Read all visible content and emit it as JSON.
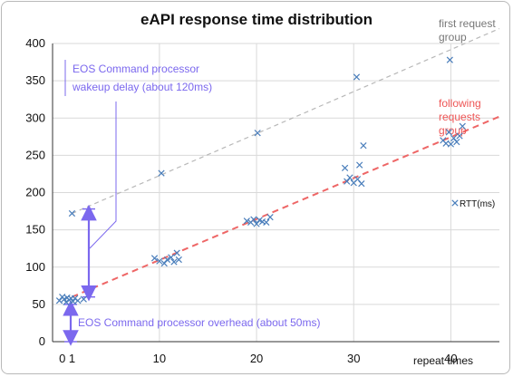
{
  "chart_data": {
    "type": "scatter",
    "title": "eAPI response time distribution",
    "xlabel": "repeat times",
    "ylabel": "",
    "xlim": [
      -1,
      45
    ],
    "ylim": [
      0,
      400
    ],
    "x_ticks": [
      "0",
      "1",
      "10",
      "20",
      "30",
      "40"
    ],
    "y_ticks": [
      "0",
      "50",
      "100",
      "150",
      "200",
      "250",
      "300",
      "350",
      "400"
    ],
    "grid": true,
    "legend": "right",
    "series": [
      {
        "name": "RTT(ms)",
        "marker": "x",
        "color": "#4a7ebb",
        "points": [
          [
            -0.3,
            55
          ],
          [
            0,
            60
          ],
          [
            0.2,
            57
          ],
          [
            0.4,
            53
          ],
          [
            0.5,
            59
          ],
          [
            0.7,
            56
          ],
          [
            0.9,
            58
          ],
          [
            1.1,
            54
          ],
          [
            1.3,
            58
          ],
          [
            1.6,
            55
          ],
          [
            2.2,
            57
          ],
          [
            1,
            172
          ],
          [
            9.5,
            112
          ],
          [
            10,
            108
          ],
          [
            10.5,
            105
          ],
          [
            10.8,
            110
          ],
          [
            11.2,
            113
          ],
          [
            11.5,
            107
          ],
          [
            11.8,
            119
          ],
          [
            12,
            110
          ],
          [
            10.2,
            226
          ],
          [
            19,
            162
          ],
          [
            19.4,
            160
          ],
          [
            19.7,
            164
          ],
          [
            20,
            158
          ],
          [
            20.3,
            163
          ],
          [
            20.6,
            161
          ],
          [
            21,
            160
          ],
          [
            21.4,
            167
          ],
          [
            20.1,
            280
          ],
          [
            29.1,
            233
          ],
          [
            29.3,
            215
          ],
          [
            29.6,
            220
          ],
          [
            30,
            213
          ],
          [
            30.4,
            218
          ],
          [
            30.6,
            237
          ],
          [
            31,
            263
          ],
          [
            30.8,
            212
          ],
          [
            30.3,
            355
          ],
          [
            39.2,
            270
          ],
          [
            39.5,
            266
          ],
          [
            39.8,
            281
          ],
          [
            40,
            265
          ],
          [
            40.3,
            273
          ],
          [
            40.6,
            268
          ],
          [
            40.9,
            276
          ],
          [
            41.2,
            289
          ],
          [
            39.9,
            378
          ]
        ]
      }
    ],
    "trendlines": [
      {
        "label": "first request group",
        "color": "#b8b8b8",
        "x": [
          1,
          45
        ],
        "y": [
          172,
          420
        ]
      },
      {
        "label": "following requests group",
        "color": "#ee6666",
        "x": [
          1,
          45
        ],
        "y": [
          60,
          302
        ]
      }
    ],
    "annotations": {
      "wakeup": "EOS Command processor wakeup delay (about 120ms)",
      "wakeup_line1": "EOS Command processor",
      "wakeup_line2": "wakeup delay (about 120ms)",
      "overhead": "EOS Command processor overhead (about 50ms)",
      "first_line1": "first request",
      "first_line2": "group",
      "follow_line1": "following",
      "follow_line2": "requests",
      "follow_line3": "group"
    },
    "colors": {
      "annotation": "#7b68ee",
      "first_label": "#777777",
      "follow_label": "#ee5555",
      "marker": "#4a7ebb"
    }
  }
}
